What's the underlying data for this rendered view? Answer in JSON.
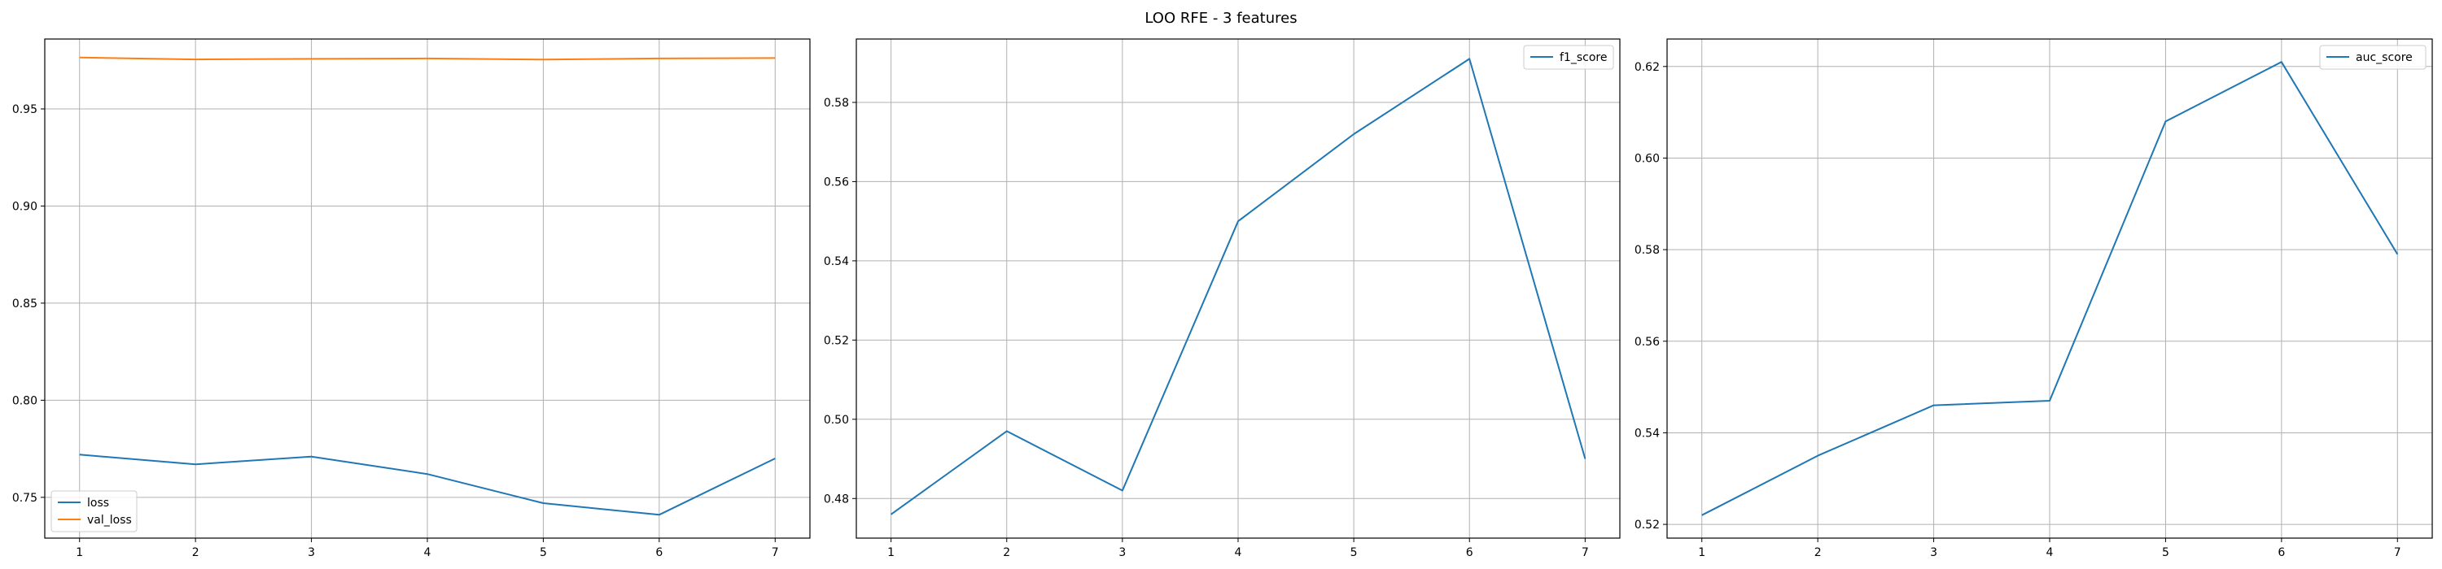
{
  "figure_title": "LOO RFE - 3 features",
  "chart_data": [
    {
      "type": "line",
      "x": [
        1,
        2,
        3,
        4,
        5,
        6,
        7
      ],
      "series": [
        {
          "name": "loss",
          "values": [
            0.772,
            0.767,
            0.771,
            0.762,
            0.747,
            0.741,
            0.77
          ],
          "color": "#1f77b4"
        },
        {
          "name": "val_loss",
          "values": [
            0.9765,
            0.9755,
            0.9758,
            0.976,
            0.9754,
            0.976,
            0.9762
          ],
          "color": "#ff7f0e"
        }
      ],
      "xlim": [
        0.7,
        7.3
      ],
      "ylim": [
        0.729,
        0.986
      ],
      "xticks": [
        "1",
        "2",
        "3",
        "4",
        "5",
        "6",
        "7"
      ],
      "yticks": [
        0.75,
        0.8,
        0.85,
        0.9,
        0.95
      ],
      "ytick_labels": [
        "0.75",
        "0.80",
        "0.85",
        "0.90",
        "0.95"
      ],
      "grid": true,
      "legend_position": "lower-left"
    },
    {
      "type": "line",
      "x": [
        1,
        2,
        3,
        4,
        5,
        6,
        7
      ],
      "series": [
        {
          "name": "f1_score",
          "values": [
            0.476,
            0.497,
            0.482,
            0.55,
            0.572,
            0.591,
            0.49
          ],
          "color": "#1f77b4"
        }
      ],
      "xlim": [
        0.7,
        7.3
      ],
      "ylim": [
        0.47,
        0.596
      ],
      "xticks": [
        "1",
        "2",
        "3",
        "4",
        "5",
        "6",
        "7"
      ],
      "yticks": [
        0.48,
        0.5,
        0.52,
        0.54,
        0.56,
        0.58
      ],
      "ytick_labels": [
        "0.48",
        "0.50",
        "0.52",
        "0.54",
        "0.56",
        "0.58"
      ],
      "grid": true,
      "legend_position": "top-right"
    },
    {
      "type": "line",
      "x": [
        1,
        2,
        3,
        4,
        5,
        6,
        7
      ],
      "series": [
        {
          "name": "auc_score",
          "values": [
            0.522,
            0.535,
            0.546,
            0.547,
            0.608,
            0.621,
            0.579
          ],
          "color": "#1f77b4"
        }
      ],
      "xlim": [
        0.7,
        7.3
      ],
      "ylim": [
        0.517,
        0.626
      ],
      "xticks": [
        "1",
        "2",
        "3",
        "4",
        "5",
        "6",
        "7"
      ],
      "yticks": [
        0.52,
        0.54,
        0.56,
        0.58,
        0.6,
        0.62
      ],
      "ytick_labels": [
        "0.52",
        "0.54",
        "0.56",
        "0.58",
        "0.60",
        "0.62"
      ],
      "grid": true,
      "legend_position": "top-right"
    }
  ]
}
